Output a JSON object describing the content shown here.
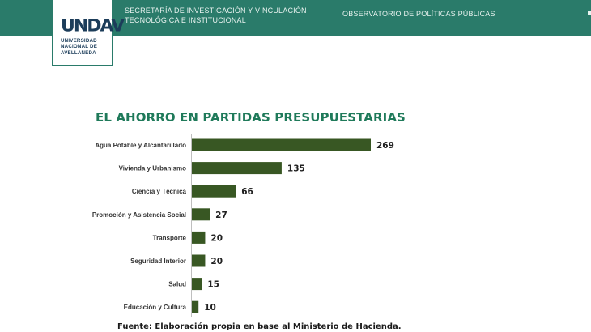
{
  "header": {
    "secretaria_line1": "SECRETARÍA DE INVESTIGACIÓN Y VINCULACIÓN",
    "secretaria_line2": "TECNOLÓGICA E INSTITUCIONAL",
    "observatorio": "OBSERVATORIO DE POLÍTICAS PÚBLICAS",
    "logo_mark": "UNDAV",
    "logo_line1": "UNIVERSIDAD",
    "logo_line2": "NACIONAL DE",
    "logo_line3": "AVELLANEDA",
    "bg_color": "#2a7b6a"
  },
  "chart_data": {
    "type": "bar",
    "orientation": "horizontal",
    "title": "EL AHORRO EN PARTIDAS PRESUPUESTARIAS",
    "categories": [
      "Agua Potable y Alcantarillado",
      "Vivienda y Urbanismo",
      "Ciencia y Técnica",
      "Promoción y Asistencia Social",
      "Transporte",
      "Seguridad Interior",
      "Salud",
      "Educación y Cultura"
    ],
    "values": [
      269,
      135,
      66,
      27,
      20,
      20,
      15,
      10
    ],
    "xlim": [
      0,
      269
    ],
    "bar_color": "#385723",
    "grid": false,
    "data_labels": true
  },
  "source": "Fuente: Elaboración propia en base al Ministerio de Hacienda."
}
